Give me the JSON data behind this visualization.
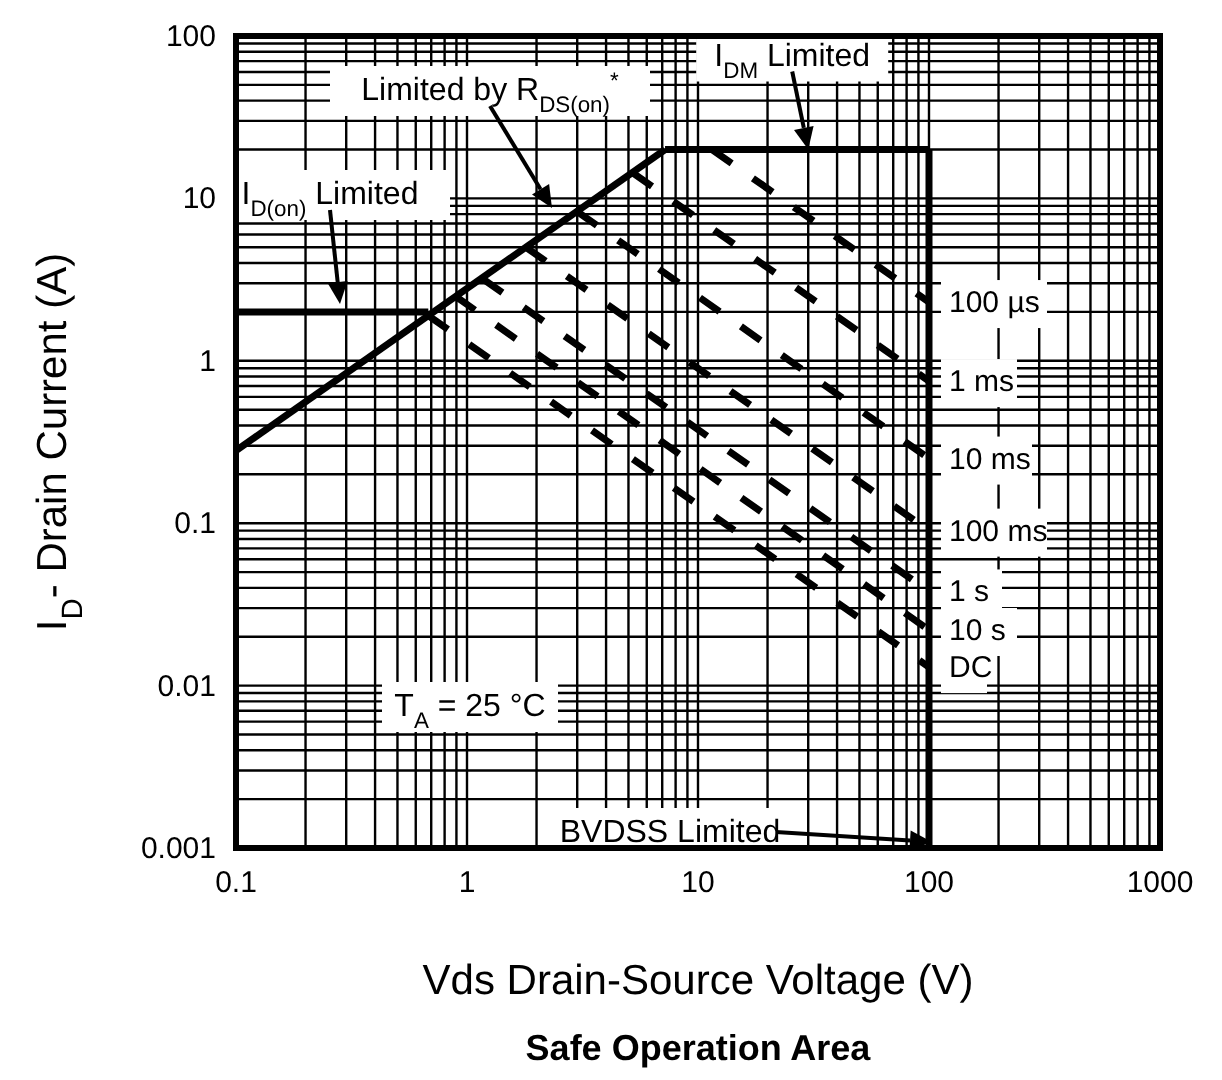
{
  "chart_data": {
    "type": "line",
    "title": "Safe Operation Area",
    "xlabel": "Vds Drain-Source Voltage (V)",
    "ylabel": "I$_{D}$- Drain Current (A)",
    "log": "xy",
    "grid": true,
    "legend": false,
    "line_style": "solid",
    "marker": "none",
    "xlim": [
      0.1,
      1000
    ],
    "ylim": [
      0.001,
      100
    ],
    "xticks": [
      0.1,
      1,
      10,
      100,
      1000
    ],
    "yticks": [
      0.001,
      0.01,
      0.1,
      1,
      10,
      100
    ],
    "series": [
      {
        "color": "#000000",
        "x": [
          0.1,
          0.68
        ],
        "values": [
          2,
          2
        ]
      },
      {
        "color": "#000000",
        "x": [
          0.1,
          7.2
        ],
        "values": [
          0.28,
          20
        ]
      },
      {
        "color": "#000000",
        "x": [
          7.2,
          100
        ],
        "values": [
          20,
          20
        ]
      },
      {
        "color": "#000000",
        "x": [
          100,
          100
        ],
        "values": [
          20,
          0.001
        ]
      },
      {
        "name": "100 µs",
        "color": "#000000",
        "line_style": "dashed",
        "x": [
          11.5,
          100
        ],
        "values": [
          20,
          2.3
        ]
      },
      {
        "name": "1 ms",
        "color": "#000000",
        "line_style": "dashed",
        "x": [
          5.2,
          100
        ],
        "values": [
          14.4,
          0.75
        ]
      },
      {
        "name": "10 ms",
        "color": "#000000",
        "line_style": "dashed",
        "x": [
          3,
          100
        ],
        "values": [
          8.3,
          0.25
        ]
      },
      {
        "name": "100 ms",
        "color": "#000000",
        "line_style": "dashed",
        "x": [
          1.8,
          100
        ],
        "values": [
          5,
          0.09
        ]
      },
      {
        "name": "1 s",
        "color": "#000000",
        "line_style": "dashed",
        "x": [
          1.17,
          100
        ],
        "values": [
          3.2,
          0.038
        ]
      },
      {
        "name": "10 s",
        "color": "#000000",
        "line_style": "dashed",
        "x": [
          0.89,
          100
        ],
        "values": [
          2.5,
          0.022
        ]
      },
      {
        "name": "DC",
        "color": "#000000",
        "line_style": "dashed",
        "x": [
          0.68,
          100
        ],
        "values": [
          1.9,
          0.013
        ]
      }
    ],
    "annotations": [
      "Limited by R$_{DS(on)}$$^{*}$",
      "I$_{D(on)}$ Limited",
      {
        "text": "I$_{DM}$ Limited",
        "x": 30,
        "y": 20
      },
      "BVDSS Limited",
      "T$_{A}$ = 25 °C"
    ]
  }
}
